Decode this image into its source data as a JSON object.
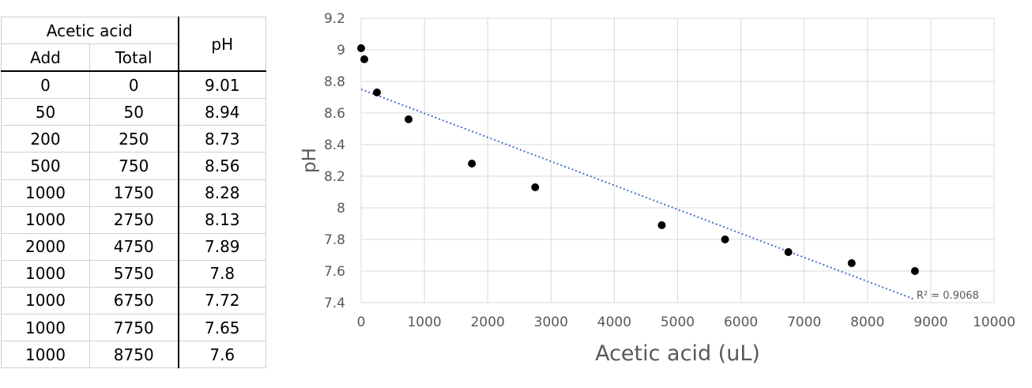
{
  "table": {
    "group_header": "Acetic acid",
    "col_add": "Add",
    "col_total": "Total",
    "col_ph": "pH",
    "rows": [
      {
        "add": "0",
        "total": "0",
        "ph": "9.01"
      },
      {
        "add": "50",
        "total": "50",
        "ph": "8.94"
      },
      {
        "add": "200",
        "total": "250",
        "ph": "8.73"
      },
      {
        "add": "500",
        "total": "750",
        "ph": "8.56"
      },
      {
        "add": "1000",
        "total": "1750",
        "ph": "8.28"
      },
      {
        "add": "1000",
        "total": "2750",
        "ph": "8.13"
      },
      {
        "add": "2000",
        "total": "4750",
        "ph": "7.89"
      },
      {
        "add": "1000",
        "total": "5750",
        "ph": "7.8"
      },
      {
        "add": "1000",
        "total": "6750",
        "ph": "7.72"
      },
      {
        "add": "1000",
        "total": "7750",
        "ph": "7.65"
      },
      {
        "add": "1000",
        "total": "8750",
        "ph": "7.6"
      }
    ]
  },
  "chart_data": {
    "type": "scatter",
    "xlabel": "Acetic acid (uL)",
    "ylabel": "pH",
    "xlim": [
      0,
      10000
    ],
    "ylim": [
      7.4,
      9.2
    ],
    "xticks": [
      0,
      1000,
      2000,
      3000,
      4000,
      5000,
      6000,
      7000,
      8000,
      9000,
      10000
    ],
    "yticks": [
      7.4,
      7.6,
      7.8,
      8,
      8.2,
      8.4,
      8.6,
      8.8,
      9,
      9.2
    ],
    "grid": true,
    "series": [
      {
        "x": [
          0,
          50,
          250,
          750,
          1750,
          2750,
          4750,
          5750,
          6750,
          7750,
          8750
        ],
        "y": [
          9.01,
          8.94,
          8.73,
          8.56,
          8.28,
          8.13,
          7.89,
          7.8,
          7.72,
          7.65,
          7.6
        ],
        "color": "#000000"
      }
    ],
    "trendline": {
      "type": "linear",
      "x": [
        0,
        8750
      ],
      "y": [
        8.75,
        7.42
      ],
      "color": "#4472c4",
      "style": "dotted",
      "r_squared_label": "R² = 0.9068"
    }
  }
}
